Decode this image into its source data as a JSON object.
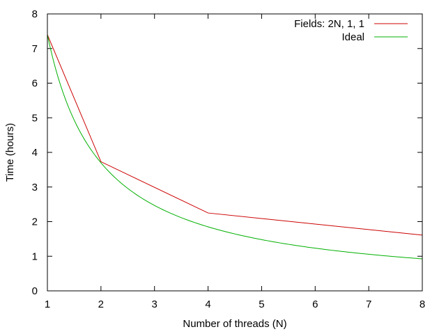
{
  "chart_data": {
    "type": "line",
    "title": "",
    "xlabel": "Number of threads (N)",
    "ylabel": "Time (hours)",
    "xlim": [
      1,
      8
    ],
    "ylim": [
      0,
      8
    ],
    "x_ticks": [
      1,
      2,
      3,
      4,
      5,
      6,
      7,
      8
    ],
    "y_ticks": [
      0,
      1,
      2,
      3,
      4,
      5,
      6,
      7,
      8
    ],
    "grid": false,
    "legend_position": "top-right",
    "series": [
      {
        "name": "Fields: 2N, 1, 1",
        "color": "#cc0000",
        "x": [
          1,
          2,
          4,
          8
        ],
        "y": [
          7.4,
          3.73,
          2.25,
          1.61
        ]
      },
      {
        "name": "Ideal",
        "color": "#00b000",
        "function": "7.4/N",
        "x": [
          1,
          1.25,
          1.5,
          1.75,
          2,
          2.5,
          3,
          3.5,
          4,
          4.5,
          5,
          5.5,
          6,
          6.5,
          7,
          7.5,
          8
        ],
        "y": [
          7.4,
          5.92,
          4.93,
          4.23,
          3.7,
          2.96,
          2.47,
          2.11,
          1.85,
          1.64,
          1.48,
          1.35,
          1.23,
          1.14,
          1.06,
          0.99,
          0.93
        ]
      }
    ]
  }
}
